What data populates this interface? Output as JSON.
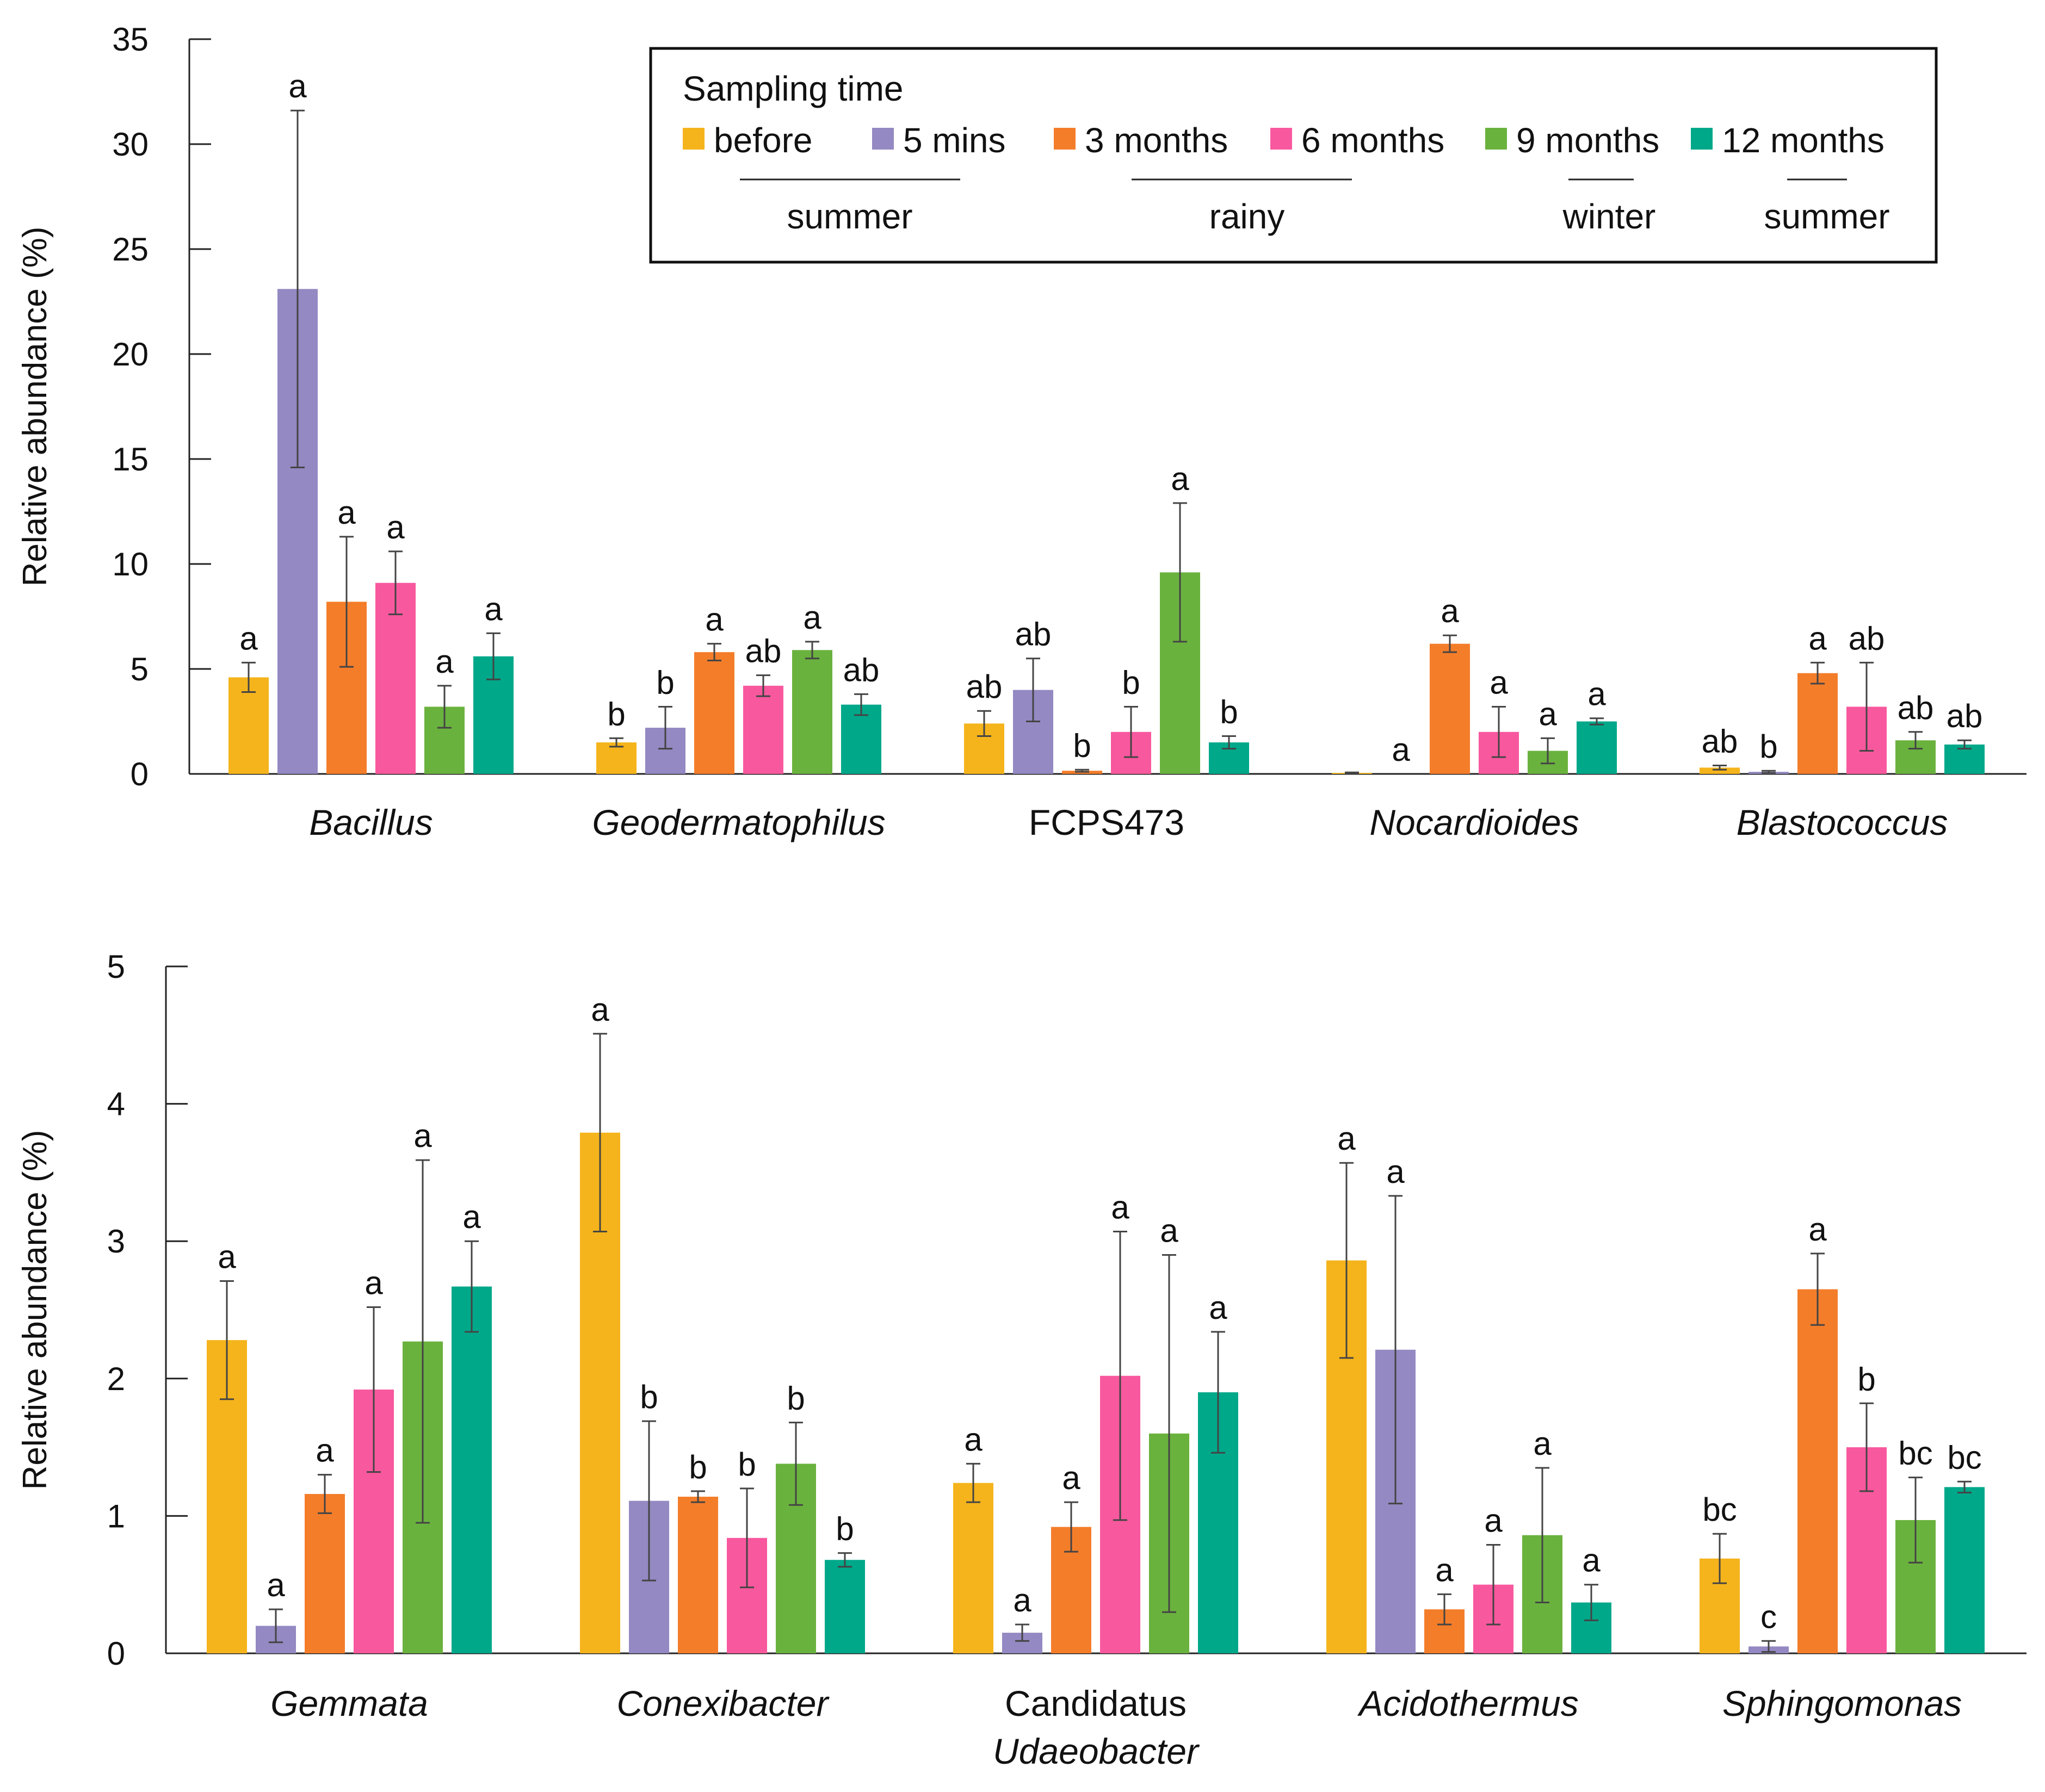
{
  "legend": {
    "title": "Sampling time",
    "items": [
      {
        "label": "before",
        "color": "#F5B41C"
      },
      {
        "label": "5 mins",
        "color": "#9489C2"
      },
      {
        "label": "3 months",
        "color": "#F47D2A"
      },
      {
        "label": "6 months",
        "color": "#F8589E"
      },
      {
        "label": "9 months",
        "color": "#6AB23E"
      },
      {
        "label": "12 months",
        "color": "#00A88A"
      }
    ],
    "seasons": [
      "summer",
      "rainy",
      "winter",
      "summer"
    ]
  },
  "chart_data": [
    {
      "type": "bar",
      "title": "",
      "xlabel": "",
      "ylabel": "Relative abundance (%)",
      "ylim": [
        0,
        35
      ],
      "yticks": [
        "0",
        "5",
        "10",
        "15",
        "20",
        "25",
        "30",
        "35"
      ],
      "categories": [
        "Bacillus",
        "Geodermatophilus",
        "FCPS473",
        "Nocardioides",
        "Blastococcus"
      ],
      "category_italic": [
        true,
        true,
        false,
        true,
        true
      ],
      "series": [
        {
          "name": "before",
          "values": [
            4.6,
            1.5,
            2.4,
            0.05,
            0.3
          ],
          "errors": [
            0.7,
            0.2,
            0.6,
            0.02,
            0.1
          ],
          "letters": [
            "a",
            "b",
            "ab",
            "",
            "ab"
          ]
        },
        {
          "name": "5 mins",
          "values": [
            23.1,
            2.2,
            4.0,
            0.0,
            0.1
          ],
          "errors": [
            8.5,
            1.0,
            1.5,
            0.0,
            0.05
          ],
          "letters": [
            "a",
            "b",
            "ab",
            "a",
            "b"
          ]
        },
        {
          "name": "3 months",
          "values": [
            8.2,
            5.8,
            0.15,
            6.2,
            4.8
          ],
          "errors": [
            3.1,
            0.4,
            0.05,
            0.4,
            0.5
          ],
          "letters": [
            "a",
            "a",
            "b",
            "a",
            "a"
          ]
        },
        {
          "name": "6 months",
          "values": [
            9.1,
            4.2,
            2.0,
            2.0,
            3.2
          ],
          "errors": [
            1.5,
            0.5,
            1.2,
            1.2,
            2.1
          ],
          "letters": [
            "a",
            "ab",
            "b",
            "a",
            "ab"
          ]
        },
        {
          "name": "9 months",
          "values": [
            3.2,
            5.9,
            9.6,
            1.1,
            1.6
          ],
          "errors": [
            1.0,
            0.4,
            3.3,
            0.6,
            0.4
          ],
          "letters": [
            "a",
            "a",
            "a",
            "a",
            "ab"
          ]
        },
        {
          "name": "12 months",
          "values": [
            5.6,
            3.3,
            1.5,
            2.5,
            1.4
          ],
          "errors": [
            1.1,
            0.5,
            0.3,
            0.15,
            0.2
          ],
          "letters": [
            "a",
            "ab",
            "b",
            "a",
            "ab"
          ]
        }
      ]
    },
    {
      "type": "bar",
      "title": "",
      "xlabel": "",
      "ylabel": "Relative abundance (%)",
      "ylim": [
        0,
        5
      ],
      "yticks": [
        "0",
        "1",
        "2",
        "3",
        "4",
        "5"
      ],
      "categories": [
        "Gemmata",
        "Conexibacter",
        "Candidatus|Udaeobacter",
        "Acidothermus",
        "Sphingomonas"
      ],
      "category_italic": [
        true,
        true,
        false,
        true,
        true
      ],
      "series": [
        {
          "name": "before",
          "values": [
            2.28,
            3.79,
            1.24,
            2.86,
            0.69
          ],
          "errors": [
            0.43,
            0.72,
            0.14,
            0.71,
            0.18
          ],
          "letters": [
            "a",
            "a",
            "a",
            "a",
            "bc"
          ]
        },
        {
          "name": "5 mins",
          "values": [
            0.2,
            1.11,
            0.15,
            2.21,
            0.05
          ],
          "errors": [
            0.12,
            0.58,
            0.06,
            1.12,
            0.04
          ],
          "letters": [
            "a",
            "b",
            "a",
            "a",
            "c"
          ]
        },
        {
          "name": "3 months",
          "values": [
            1.16,
            1.14,
            0.92,
            0.32,
            2.65
          ],
          "errors": [
            0.14,
            0.04,
            0.18,
            0.11,
            0.26
          ],
          "letters": [
            "a",
            "b",
            "a",
            "a",
            "a"
          ]
        },
        {
          "name": "6 months",
          "values": [
            1.92,
            0.84,
            2.02,
            0.5,
            1.5
          ],
          "errors": [
            0.6,
            0.36,
            1.05,
            0.29,
            0.32
          ],
          "letters": [
            "a",
            "b",
            "a",
            "a",
            "b"
          ]
        },
        {
          "name": "9 months",
          "values": [
            2.27,
            1.38,
            1.6,
            0.86,
            0.97
          ],
          "errors": [
            1.32,
            0.3,
            1.3,
            0.49,
            0.31
          ],
          "letters": [
            "a",
            "b",
            "a",
            "a",
            "bc"
          ]
        },
        {
          "name": "12 months",
          "values": [
            2.67,
            0.68,
            1.9,
            0.37,
            1.21
          ],
          "errors": [
            0.33,
            0.05,
            0.44,
            0.13,
            0.04
          ],
          "letters": [
            "a",
            "b",
            "a",
            "a",
            "bc"
          ]
        }
      ]
    }
  ]
}
